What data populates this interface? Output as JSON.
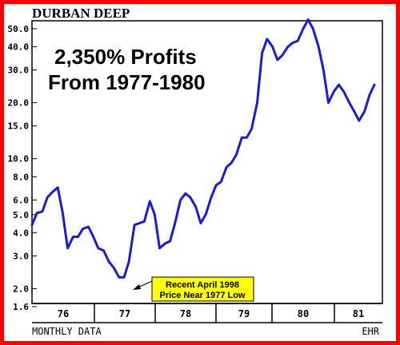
{
  "chart_data": {
    "type": "line",
    "title": "DURBAN DEEP",
    "headline": [
      "2,350% Profits",
      "From 1977-1980"
    ],
    "y_scale": "log",
    "y_ticks": [
      "50.0",
      "40.0",
      "30.0",
      "20.0",
      "15.0",
      "10.0",
      "8.0",
      "6.0",
      "5.0",
      "4.0",
      "3.0",
      "2.0",
      "1.6"
    ],
    "y_tick_values": [
      50,
      40,
      30,
      20,
      15,
      10,
      8,
      6,
      5,
      4,
      3,
      2,
      1.6
    ],
    "x_labels": [
      "76",
      "77",
      "78",
      "79",
      "80",
      "81"
    ],
    "footer_left": "MONTHLY DATA",
    "footer_right": "EHR",
    "annotation": [
      "Recent April 1998",
      "Price Near 1977 Low"
    ],
    "line_color": "#1a1adb",
    "frame_color": "#ff0000",
    "annotation_bg": "#ffff00",
    "series": [
      {
        "x": [
          1975.96,
          1976.04,
          1976.13,
          1976.21,
          1976.29,
          1976.38,
          1976.46,
          1976.54,
          1976.63,
          1976.71,
          1976.79,
          1976.88,
          1976.96,
          1977.04,
          1977.13,
          1977.21,
          1977.29,
          1977.38,
          1977.46,
          1977.54,
          1977.63,
          1977.71,
          1977.79,
          1977.88,
          1977.96,
          1978.04,
          1978.13,
          1978.21,
          1978.29,
          1978.38,
          1978.46,
          1978.54,
          1978.63,
          1978.71,
          1978.79,
          1978.88,
          1978.96,
          1979.04,
          1979.13,
          1979.21,
          1979.29,
          1979.38,
          1979.46,
          1979.54,
          1979.63,
          1979.71,
          1979.79,
          1979.88,
          1979.96,
          1980.04,
          1980.13,
          1980.21,
          1980.29,
          1980.38,
          1980.46,
          1980.54,
          1980.63,
          1980.71,
          1980.79,
          1980.88,
          1980.96,
          1981.04,
          1981.13,
          1981.21,
          1981.29,
          1981.38,
          1981.46,
          1981.54
        ],
        "y": [
          4.4,
          5.1,
          5.2,
          6.2,
          6.6,
          7.0,
          5.1,
          3.3,
          3.8,
          3.8,
          4.2,
          4.3,
          3.8,
          3.3,
          3.2,
          2.8,
          2.6,
          2.3,
          2.3,
          2.8,
          4.4,
          4.5,
          4.6,
          5.9,
          5.0,
          3.3,
          3.5,
          3.6,
          4.5,
          6.0,
          6.5,
          6.2,
          5.5,
          4.5,
          5.0,
          6.2,
          7.2,
          7.5,
          9.0,
          9.5,
          10.5,
          13.0,
          13.0,
          14.5,
          20.0,
          37.0,
          44.0,
          40.0,
          34.0,
          36.0,
          40.0,
          42.0,
          43.0,
          50.0,
          56.0,
          50.0,
          40.0,
          30.0,
          20.0,
          23.0,
          25.0,
          23.0,
          20.0,
          18.0,
          16.0,
          18.0,
          22.0,
          25.0
        ]
      }
    ]
  }
}
